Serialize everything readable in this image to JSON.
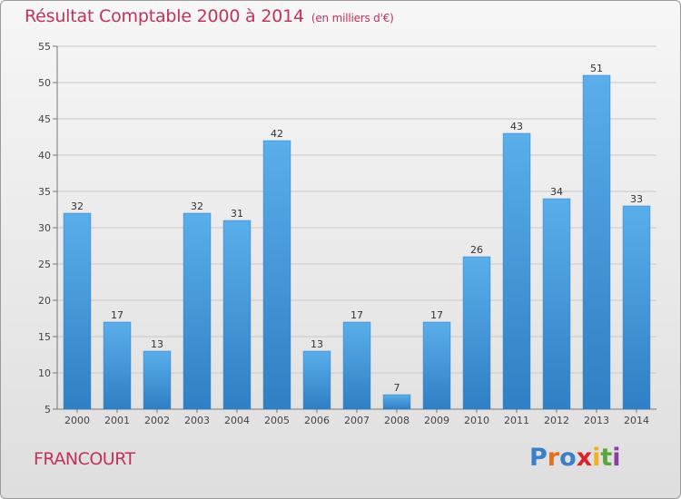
{
  "header": {
    "title": "Résultat Comptable 2000 à 2014",
    "subtitle": "(en milliers d'€)"
  },
  "footer": {
    "commune": "FRANCOURT",
    "logo_letters": [
      {
        "char": "P",
        "color": "#3a7fc8"
      },
      {
        "char": "r",
        "color": "#e86f1e"
      },
      {
        "char": "o",
        "color": "#3a7fc8"
      },
      {
        "char": "x",
        "color": "#d9242e"
      },
      {
        "char": "i",
        "color": "#f2b01f"
      },
      {
        "char": "t",
        "color": "#5aa63c"
      },
      {
        "char": "i",
        "color": "#8a3f9e"
      }
    ]
  },
  "colors": {
    "bar": "#3b8fd3",
    "bar_light": "#5aaeea",
    "title": "#c0335b"
  },
  "chart_data": {
    "type": "bar",
    "categories": [
      "2000",
      "2001",
      "2002",
      "2003",
      "2004",
      "2005",
      "2006",
      "2007",
      "2008",
      "2009",
      "2010",
      "2011",
      "2012",
      "2013",
      "2014"
    ],
    "values": [
      32,
      17,
      13,
      32,
      31,
      42,
      13,
      17,
      7,
      17,
      26,
      43,
      34,
      51,
      33
    ],
    "ylim": [
      5,
      55
    ],
    "yticks": [
      5,
      10,
      15,
      20,
      25,
      30,
      35,
      40,
      45,
      50,
      55
    ],
    "grid": true,
    "legend": "none"
  }
}
